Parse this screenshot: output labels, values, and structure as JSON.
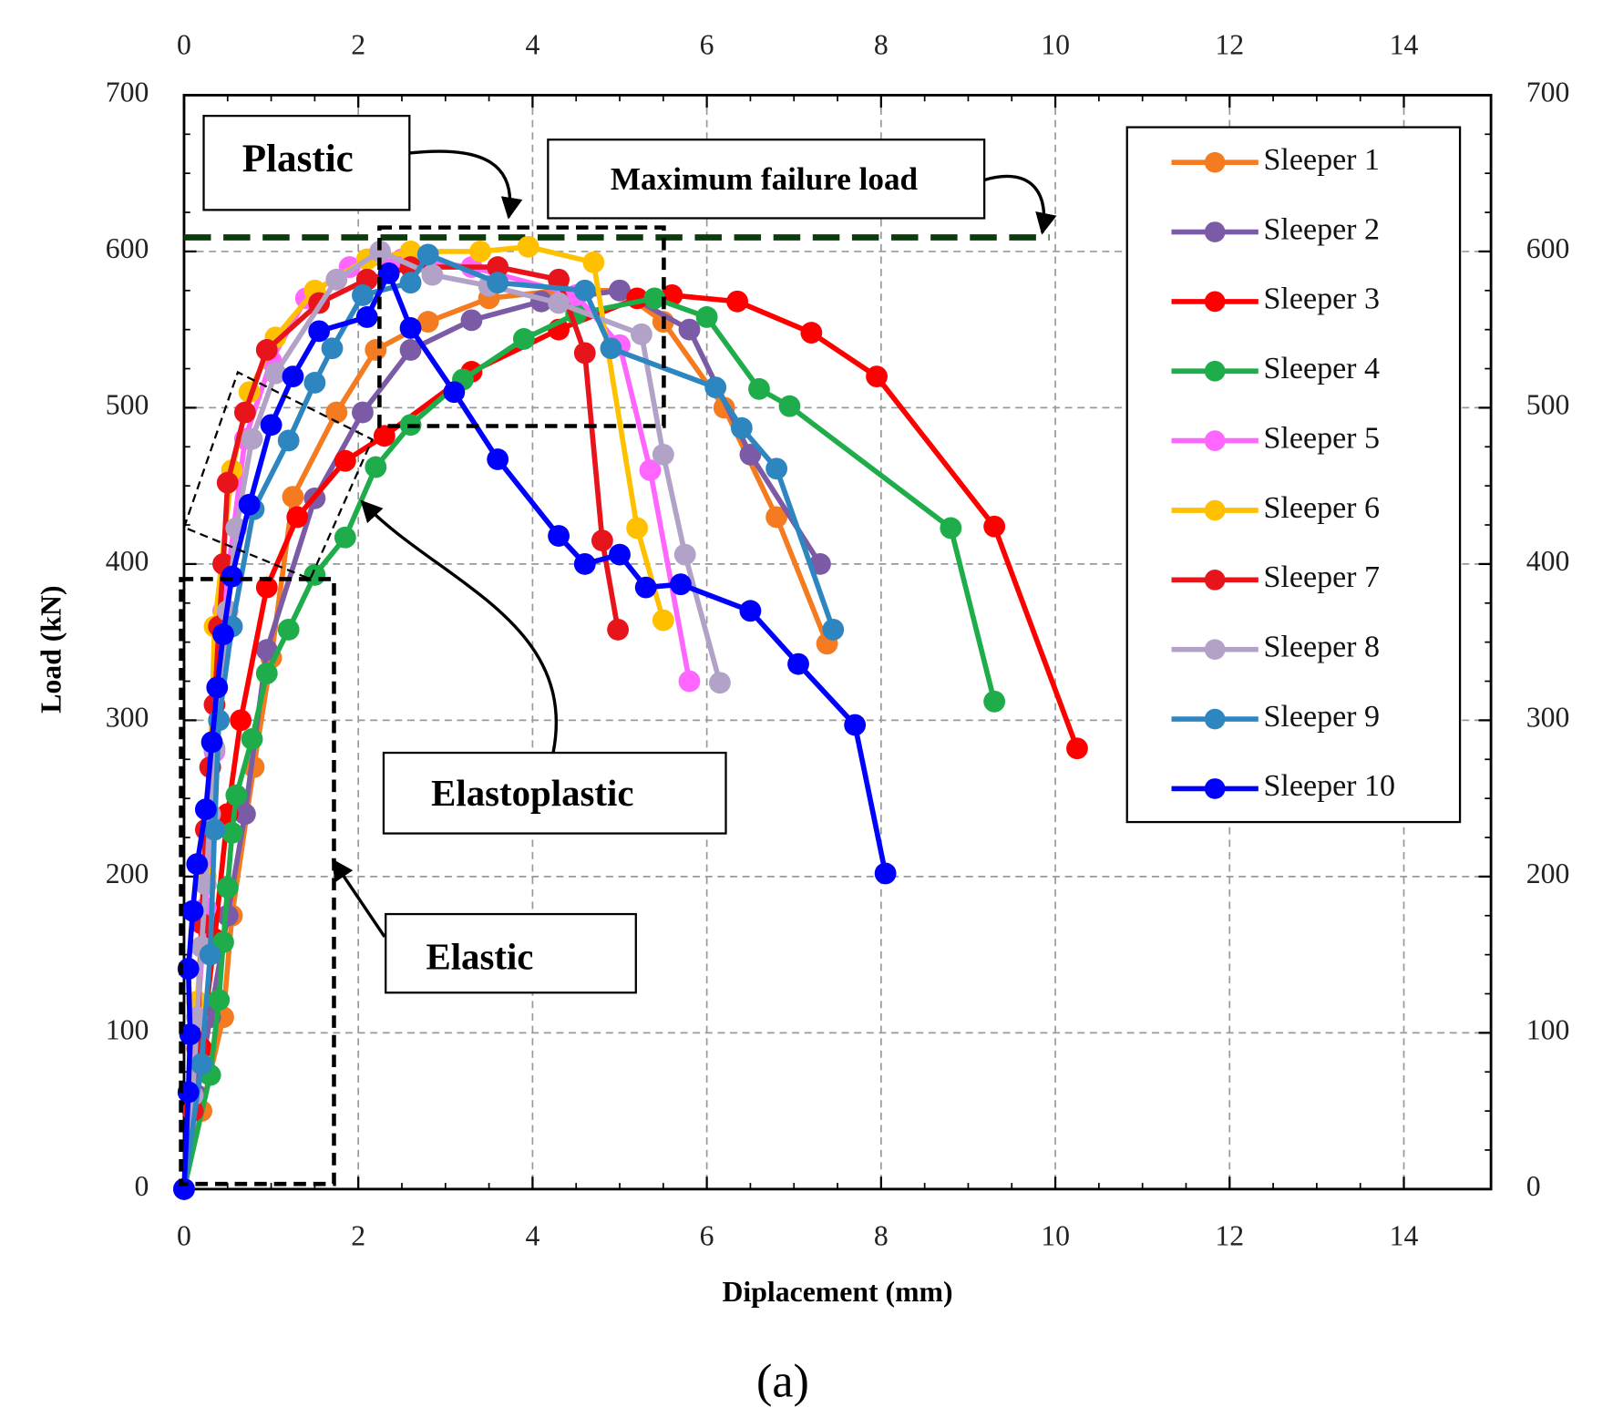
{
  "chart_data": {
    "type": "line",
    "xlabel": "Diplacement (mm)",
    "ylabel": "Load (kN)",
    "xlim": [
      0,
      15
    ],
    "ylim": [
      0,
      700
    ],
    "xticks": [
      0,
      2,
      4,
      6,
      8,
      10,
      12,
      14
    ],
    "yticks": [
      0,
      100,
      200,
      300,
      400,
      500,
      600,
      700
    ],
    "grid": true,
    "legend": "upper right",
    "max_failure_load": 609,
    "annotations": [
      "Plastic",
      "Maximum failure load",
      "Elastoplastic",
      "Elastic"
    ],
    "caption": "(a)",
    "series": [
      {
        "name": "Sleeper 1",
        "color": "#f47b20",
        "x": [
          0,
          0.2,
          0.45,
          0.55,
          0.8,
          1.0,
          1.25,
          1.75,
          2.2,
          2.8,
          3.5,
          4.3,
          5.0,
          5.5,
          6.2,
          6.8,
          7.38
        ],
        "values": [
          0,
          50,
          110,
          175,
          270,
          340,
          443,
          497,
          537,
          555,
          570,
          575,
          575,
          555,
          500,
          430,
          349
        ]
      },
      {
        "name": "Sleeper 2",
        "color": "#7b5aa6",
        "x": [
          0,
          0.15,
          0.3,
          0.5,
          0.7,
          0.95,
          1.5,
          2.05,
          2.6,
          3.3,
          4.1,
          5.0,
          5.8,
          6.5,
          7.3
        ],
        "values": [
          0,
          60,
          110,
          175,
          240,
          345,
          442,
          497,
          537,
          556,
          568,
          575,
          550,
          470,
          400
        ]
      },
      {
        "name": "Sleeper 3",
        "color": "#ff0000",
        "x": [
          0,
          0.2,
          0.35,
          0.5,
          0.65,
          0.95,
          1.3,
          1.85,
          2.3,
          3.3,
          4.3,
          5.2,
          5.6,
          6.35,
          7.2,
          7.95,
          9.3,
          10.25
        ],
        "values": [
          0,
          90,
          160,
          240,
          300,
          385,
          430,
          466,
          482,
          523,
          550,
          570,
          572,
          568,
          548,
          520,
          424,
          282
        ]
      },
      {
        "name": "Sleeper 4",
        "color": "#1fad4b",
        "x": [
          0,
          0.3,
          0.4,
          0.45,
          0.5,
          0.55,
          0.6,
          0.78,
          0.95,
          1.2,
          1.5,
          1.85,
          2.2,
          2.6,
          3.2,
          3.9,
          4.5,
          5.4,
          6.0,
          6.6,
          6.95,
          8.8,
          9.3
        ],
        "values": [
          0,
          73,
          121,
          158,
          193,
          228,
          252,
          288,
          330,
          358,
          393,
          417,
          462,
          489,
          518,
          544,
          560,
          570,
          558,
          512,
          501,
          423,
          312
        ]
      },
      {
        "name": "Sleeper 5",
        "color": "#ff66ff",
        "x": [
          0,
          0.15,
          0.25,
          0.35,
          0.45,
          0.7,
          1.0,
          1.4,
          1.9,
          2.5,
          3.3,
          4.5,
          5.0,
          5.35,
          5.8
        ],
        "values": [
          0,
          110,
          180,
          280,
          370,
          480,
          530,
          570,
          590,
          595,
          590,
          572,
          540,
          460,
          325
        ]
      },
      {
        "name": "Sleeper 6",
        "color": "#ffc000",
        "x": [
          0,
          0.15,
          0.25,
          0.3,
          0.35,
          0.55,
          0.75,
          1.05,
          1.5,
          2.1,
          2.6,
          3.4,
          3.95,
          4.7,
          5.2,
          5.5
        ],
        "values": [
          0,
          120,
          200,
          270,
          360,
          460,
          510,
          545,
          575,
          595,
          600,
          600,
          603,
          593,
          423,
          364
        ]
      },
      {
        "name": "Sleeper 7",
        "color": "#e8141b",
        "x": [
          0,
          0.1,
          0.15,
          0.2,
          0.25,
          0.3,
          0.35,
          0.4,
          0.45,
          0.5,
          0.7,
          0.95,
          1.55,
          2.1,
          2.6,
          3.6,
          4.3,
          4.6,
          4.8,
          4.98
        ],
        "values": [
          0,
          50,
          90,
          170,
          230,
          270,
          310,
          360,
          400,
          452,
          497,
          537,
          567,
          582,
          590,
          590,
          582,
          535,
          415,
          358
        ]
      },
      {
        "name": "Sleeper 8",
        "color": "#b3a2c7",
        "x": [
          0,
          0.1,
          0.15,
          0.2,
          0.25,
          0.3,
          0.35,
          0.5,
          0.6,
          0.78,
          1.05,
          1.75,
          2.25,
          2.85,
          3.5,
          4.3,
          5.25,
          5.5,
          5.75,
          6.15
        ],
        "values": [
          0,
          60,
          110,
          155,
          195,
          240,
          282,
          370,
          423,
          480,
          522,
          582,
          600,
          585,
          578,
          567,
          547,
          470,
          406,
          324
        ]
      },
      {
        "name": "Sleeper 9",
        "color": "#2e86c1",
        "x": [
          0,
          0.2,
          0.3,
          0.35,
          0.4,
          0.55,
          0.8,
          1.2,
          1.5,
          1.7,
          2.05,
          2.6,
          2.8,
          3.6,
          4.6,
          4.9,
          6.1,
          6.4,
          6.8,
          7.45
        ],
        "values": [
          0,
          80,
          150,
          230,
          300,
          360,
          435,
          479,
          516,
          538,
          572,
          580,
          598,
          580,
          575,
          538,
          513,
          487,
          461,
          358
        ]
      },
      {
        "name": "Sleeper 10",
        "color": "#0000ff",
        "x": [
          0,
          0.05,
          0.07,
          0.05,
          0.1,
          0.15,
          0.25,
          0.32,
          0.38,
          0.45,
          0.55,
          0.75,
          1.0,
          1.25,
          1.55,
          2.1,
          2.35,
          2.6,
          3.1,
          3.6,
          4.3,
          4.6,
          5.0,
          5.3,
          5.7,
          6.5,
          7.05,
          7.7,
          8.05
        ],
        "values": [
          0,
          62,
          99,
          141,
          178,
          208,
          243,
          286,
          321,
          355,
          392,
          438,
          489,
          520,
          549,
          558,
          586,
          551,
          510,
          467,
          418,
          400,
          406,
          385,
          387,
          370,
          336,
          297,
          202
        ]
      }
    ]
  }
}
